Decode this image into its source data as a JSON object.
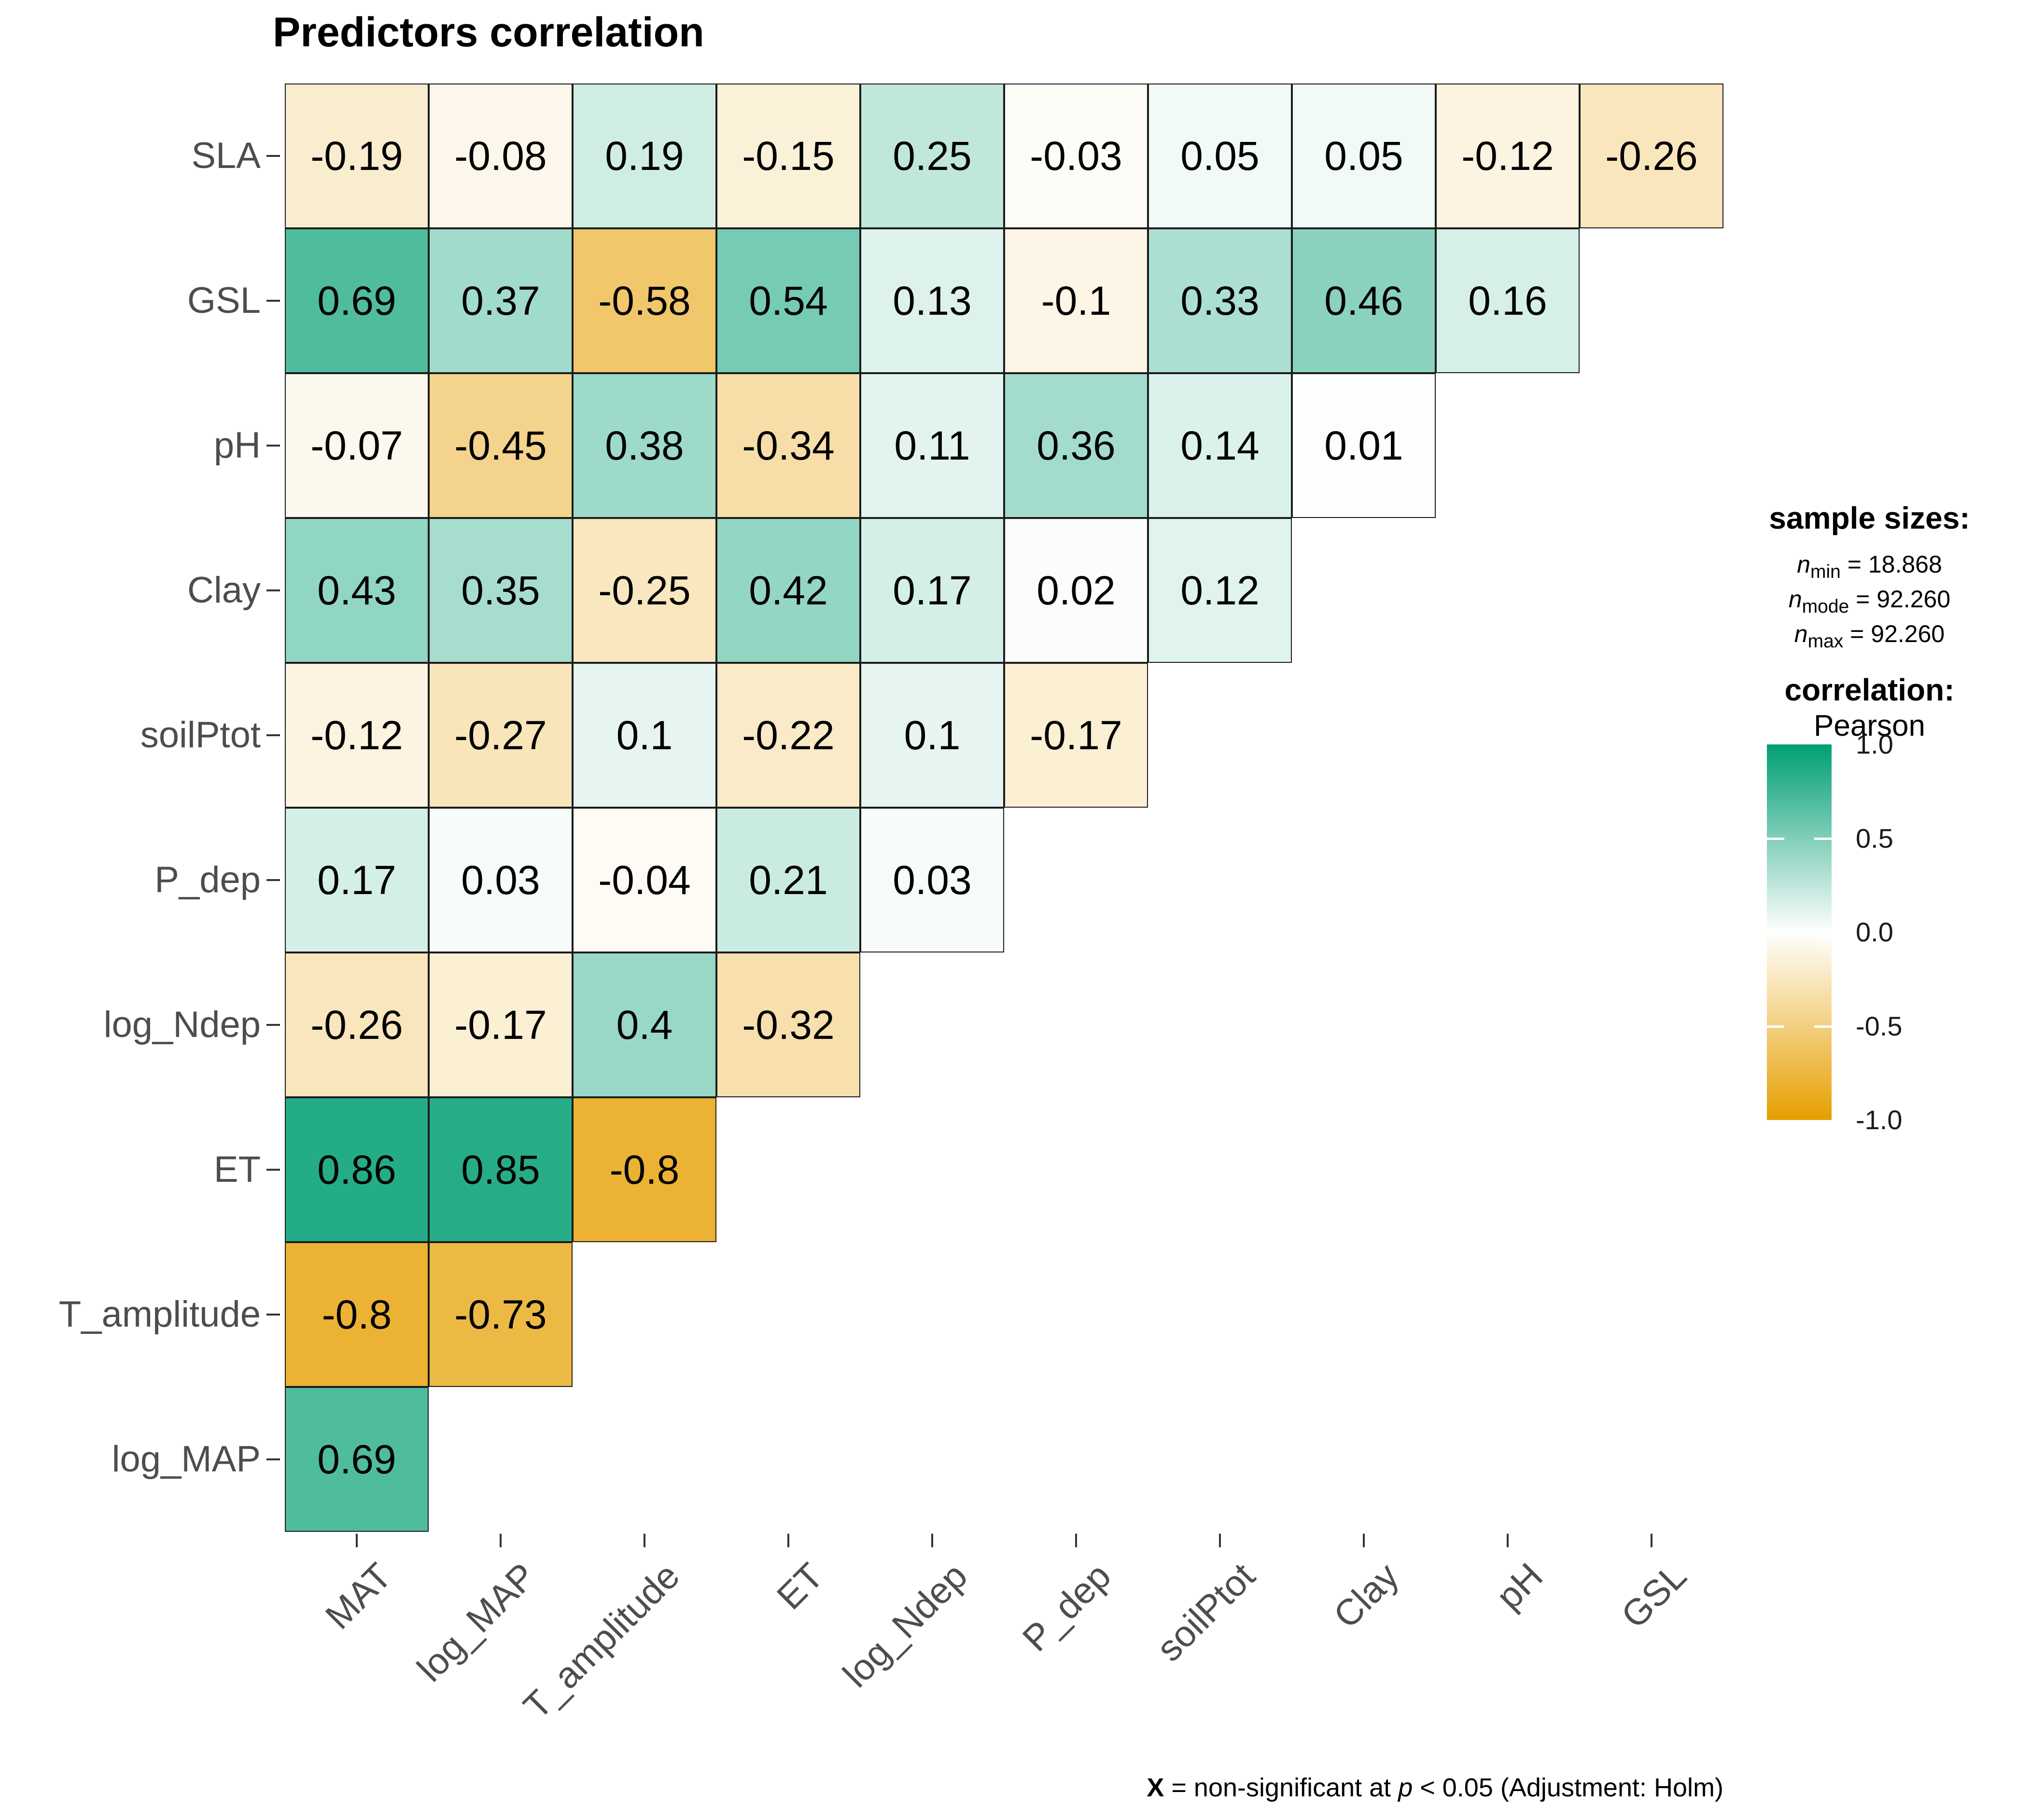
{
  "title": "Predictors correlation",
  "chart_data": {
    "type": "heatmap",
    "title": "Predictors correlation",
    "correlation_method": "Pearson",
    "x_categories": [
      "MAT",
      "log_MAP",
      "T_amplitude",
      "ET",
      "log_Ndep",
      "P_dep",
      "soilPtot",
      "Clay",
      "pH",
      "GSL"
    ],
    "y_categories": [
      "SLA",
      "GSL",
      "pH",
      "Clay",
      "soilPtot",
      "P_dep",
      "log_Ndep",
      "ET",
      "T_amplitude",
      "log_MAP"
    ],
    "matrix": [
      [
        -0.19,
        -0.08,
        0.19,
        -0.15,
        0.25,
        -0.03,
        0.05,
        0.05,
        -0.12,
        -0.26
      ],
      [
        0.69,
        0.37,
        -0.58,
        0.54,
        0.13,
        -0.1,
        0.33,
        0.46,
        0.16,
        null
      ],
      [
        -0.07,
        -0.45,
        0.38,
        -0.34,
        0.11,
        0.36,
        0.14,
        0.01,
        null,
        null
      ],
      [
        0.43,
        0.35,
        -0.25,
        0.42,
        0.17,
        0.02,
        0.12,
        null,
        null,
        null
      ],
      [
        -0.12,
        -0.27,
        0.1,
        -0.22,
        0.1,
        -0.17,
        null,
        null,
        null,
        null
      ],
      [
        0.17,
        0.03,
        -0.04,
        0.21,
        0.03,
        null,
        null,
        null,
        null,
        null
      ],
      [
        -0.26,
        -0.17,
        0.4,
        -0.32,
        null,
        null,
        null,
        null,
        null,
        null
      ],
      [
        0.86,
        0.85,
        -0.8,
        null,
        null,
        null,
        null,
        null,
        null,
        null
      ],
      [
        -0.8,
        -0.73,
        null,
        null,
        null,
        null,
        null,
        null,
        null,
        null
      ],
      [
        0.69,
        null,
        null,
        null,
        null,
        null,
        null,
        null,
        null,
        null
      ]
    ],
    "color_scale": {
      "negative": "#E69F00",
      "zero": "#FFFFFF",
      "positive": "#009E73",
      "min": -1.0,
      "max": 1.0
    },
    "legend_ticks": [
      "1.0",
      "0.5",
      "0.0",
      "-0.5",
      "-1.0"
    ],
    "legend_position": "right",
    "grid": "off"
  },
  "legend": {
    "sample_sizes": {
      "title": "sample sizes:",
      "items": [
        {
          "sym": "n",
          "sub": "min",
          "eq": " = ",
          "value": "18.868"
        },
        {
          "sym": "n",
          "sub": "mode",
          "eq": " = ",
          "value": "92.260"
        },
        {
          "sym": "n",
          "sub": "max",
          "eq": " = ",
          "value": "92.260"
        }
      ]
    },
    "correlation": {
      "title": "correlation:",
      "method": "Pearson"
    }
  },
  "caption": {
    "x": "X",
    "mid": " = non-significant at ",
    "p": "p",
    "end": " < 0.05 (Adjustment: Holm)"
  }
}
